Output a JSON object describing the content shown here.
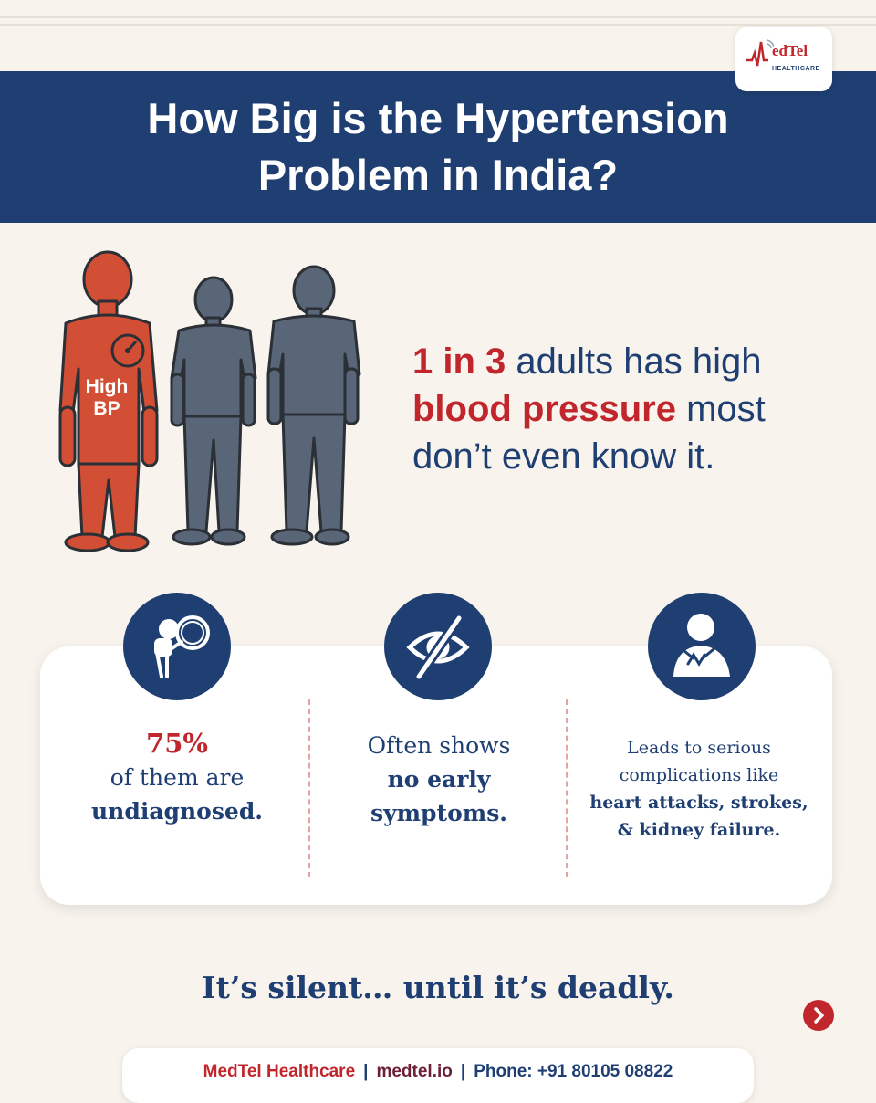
{
  "logo": {
    "name": "edTel",
    "sub": "HEALTHCARE"
  },
  "title": "How Big is the Hypertension Problem in India?",
  "figure": {
    "label": "High\nBP"
  },
  "stat": {
    "number": "1 in 3",
    "part1": " adults has high ",
    "emphasis": "blood pressure",
    "part2": " most don’t even know it."
  },
  "cards": [
    {
      "icon": "magnifier-person-icon",
      "percent": "75%",
      "line1": "of them are",
      "line2": "undiagnosed."
    },
    {
      "icon": "eye-slash-icon",
      "line1": "Often shows",
      "bold1": "no early",
      "bold2": "symptoms."
    },
    {
      "icon": "chest-pain-icon",
      "line1": "Leads to serious",
      "line2": "complications like",
      "bold1": "heart attacks, strokes,",
      "bold2": "& kidney failure."
    }
  ],
  "tagline": "It’s silent… until it’s deadly.",
  "footer": {
    "brand": "MedTel Healthcare",
    "separator": "|",
    "site": "medtel.io",
    "phone": "Phone: +91 80105 08822"
  },
  "colors": {
    "navy": "#1f3f73",
    "red": "#c0262c",
    "background": "#f8f4ed",
    "figure_grey": "#596678",
    "figure_red": "#d24f35"
  }
}
